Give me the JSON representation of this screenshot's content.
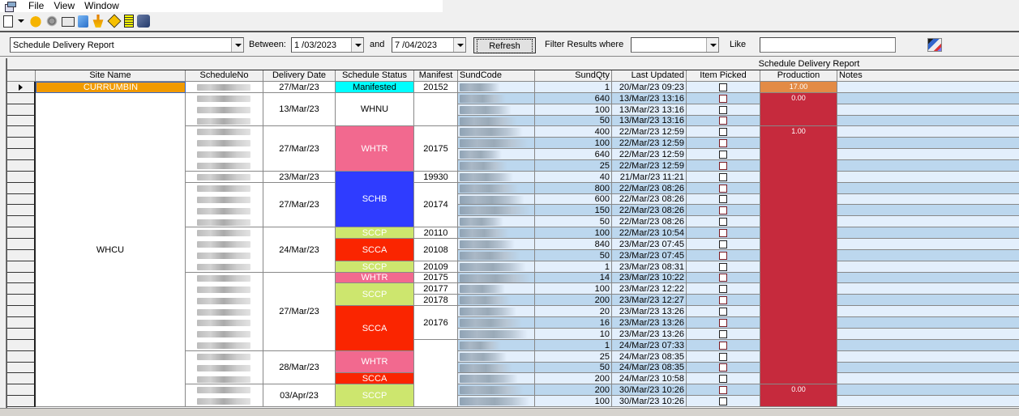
{
  "menubar": {
    "items": [
      "File",
      "View",
      "Window"
    ]
  },
  "toolbar": {
    "icons": [
      "new-document-icon",
      "dropdown-arrow-icon",
      "hand-icon",
      "ear-icon",
      "folder-network-icon",
      "copy-icon",
      "person-icon",
      "road-sign-icon",
      "ledger-icon",
      "box-icon"
    ]
  },
  "filterbar": {
    "report_select": "Schedule Delivery Report",
    "between_label": "Between:",
    "date_from": "1 /03/2023",
    "and_label": "and",
    "date_to": "7 /04/2023",
    "refresh_label": "Refresh",
    "filter_label": "Filter Results where",
    "filter_field": "",
    "like_label": "Like",
    "like_value": ""
  },
  "grid": {
    "band_title": "Schedule Delivery Report",
    "columns": [
      "Site Name",
      "ScheduleNo",
      "Delivery Date",
      "Schedule Status",
      "Manifest",
      "SundCode",
      "SundQty",
      "Last Updated",
      "Item Picked",
      "Production",
      "Notes"
    ],
    "site_groups": [
      {
        "name": "CURRUMBIN",
        "rows": 1,
        "color": "#f09a00"
      },
      {
        "name": "WHCU",
        "rows": 28,
        "color": "#ffffff"
      }
    ],
    "date_groups": [
      {
        "date": "27/Mar/23",
        "start": 0,
        "rows": 1
      },
      {
        "date": "13/Mar/23",
        "start": 1,
        "rows": 3
      },
      {
        "date": "27/Mar/23",
        "start": 4,
        "rows": 4
      },
      {
        "date": "23/Mar/23",
        "start": 8,
        "rows": 1
      },
      {
        "date": "27/Mar/23",
        "start": 9,
        "rows": 4
      },
      {
        "date": "24/Mar/23",
        "start": 13,
        "rows": 4
      },
      {
        "date": "27/Mar/23",
        "start": 17,
        "rows": 7
      },
      {
        "date": "28/Mar/23",
        "start": 24,
        "rows": 3
      },
      {
        "date": "03/Apr/23",
        "start": 27,
        "rows": 2
      }
    ],
    "status_groups": [
      {
        "status": "Manifested",
        "start": 0,
        "rows": 1,
        "bg": "#00ffff",
        "fg": "#000000"
      },
      {
        "status": "WHNU",
        "start": 1,
        "rows": 3,
        "bg": "#ffffff",
        "fg": "#000000"
      },
      {
        "status": "WHTR",
        "start": 4,
        "rows": 4,
        "bg": "#f2698f",
        "fg": "#ffffff"
      },
      {
        "status": "SCHB",
        "start": 8,
        "rows": 5,
        "bg": "#2f3cff",
        "fg": "#ffffff"
      },
      {
        "status": "SCCP",
        "start": 13,
        "rows": 1,
        "bg": "#cde66e",
        "fg": "#ffffff"
      },
      {
        "status": "SCCA",
        "start": 14,
        "rows": 2,
        "bg": "#fa2500",
        "fg": "#ffffff"
      },
      {
        "status": "SCCP",
        "start": 16,
        "rows": 1,
        "bg": "#cde66e",
        "fg": "#ffffff"
      },
      {
        "status": "WHTR",
        "start": 17,
        "rows": 1,
        "bg": "#f2698f",
        "fg": "#ffffff"
      },
      {
        "status": "SCCP",
        "start": 18,
        "rows": 2,
        "bg": "#cde66e",
        "fg": "#ffffff"
      },
      {
        "status": "SCCA",
        "start": 20,
        "rows": 4,
        "bg": "#fa2500",
        "fg": "#ffffff"
      },
      {
        "status": "WHTR",
        "start": 24,
        "rows": 2,
        "bg": "#f2698f",
        "fg": "#ffffff"
      },
      {
        "status": "SCCA",
        "start": 26,
        "rows": 1,
        "bg": "#fa2500",
        "fg": "#ffffff"
      },
      {
        "status": "SCCP",
        "start": 27,
        "rows": 2,
        "bg": "#cde66e",
        "fg": "#ffffff"
      }
    ],
    "manifest_groups": [
      {
        "manifest": "20152",
        "start": 0,
        "rows": 1
      },
      {
        "manifest": "",
        "start": 1,
        "rows": 3
      },
      {
        "manifest": "20175",
        "start": 4,
        "rows": 4
      },
      {
        "manifest": "19930",
        "start": 8,
        "rows": 1
      },
      {
        "manifest": "20174",
        "start": 9,
        "rows": 4
      },
      {
        "manifest": "20110",
        "start": 13,
        "rows": 1
      },
      {
        "manifest": "20108",
        "start": 14,
        "rows": 2
      },
      {
        "manifest": "20109",
        "start": 16,
        "rows": 1
      },
      {
        "manifest": "20175",
        "start": 17,
        "rows": 1
      },
      {
        "manifest": "20177",
        "start": 18,
        "rows": 1
      },
      {
        "manifest": "20178",
        "start": 19,
        "rows": 1
      },
      {
        "manifest": "20176",
        "start": 20,
        "rows": 3
      },
      {
        "manifest": "",
        "start": 23,
        "rows": 6
      }
    ],
    "production_groups": [
      {
        "value": "17.00",
        "start": 0,
        "rows": 1,
        "bg": "#e38b45"
      },
      {
        "value": "0.00",
        "start": 1,
        "rows": 3,
        "bg": "#c62a3d"
      },
      {
        "value": "1.00",
        "start": 4,
        "rows": 23,
        "bg": "#c62a3d"
      },
      {
        "value": "0.00",
        "start": 27,
        "rows": 2,
        "bg": "#c62a3d"
      }
    ],
    "rows": [
      {
        "qty": "1",
        "updated": "20/Mar/23 09:23"
      },
      {
        "qty": "640",
        "updated": "13/Mar/23 13:16"
      },
      {
        "qty": "100",
        "updated": "13/Mar/23 13:16"
      },
      {
        "qty": "50",
        "updated": "13/Mar/23 13:16"
      },
      {
        "qty": "400",
        "updated": "22/Mar/23 12:59"
      },
      {
        "qty": "100",
        "updated": "22/Mar/23 12:59"
      },
      {
        "qty": "640",
        "updated": "22/Mar/23 12:59"
      },
      {
        "qty": "25",
        "updated": "22/Mar/23 12:59"
      },
      {
        "qty": "40",
        "updated": "21/Mar/23 11:21"
      },
      {
        "qty": "800",
        "updated": "22/Mar/23 08:26"
      },
      {
        "qty": "600",
        "updated": "22/Mar/23 08:26"
      },
      {
        "qty": "150",
        "updated": "22/Mar/23 08:26"
      },
      {
        "qty": "50",
        "updated": "22/Mar/23 08:26"
      },
      {
        "qty": "100",
        "updated": "22/Mar/23 10:54"
      },
      {
        "qty": "840",
        "updated": "23/Mar/23 07:45"
      },
      {
        "qty": "50",
        "updated": "23/Mar/23 07:45"
      },
      {
        "qty": "1",
        "updated": "23/Mar/23 08:31"
      },
      {
        "qty": "14",
        "updated": "23/Mar/23 10:22"
      },
      {
        "qty": "100",
        "updated": "23/Mar/23 12:22"
      },
      {
        "qty": "200",
        "updated": "23/Mar/23 12:27"
      },
      {
        "qty": "20",
        "updated": "23/Mar/23 13:26"
      },
      {
        "qty": "16",
        "updated": "23/Mar/23 13:26"
      },
      {
        "qty": "10",
        "updated": "23/Mar/23 13:26"
      },
      {
        "qty": "1",
        "updated": "24/Mar/23 07:33"
      },
      {
        "qty": "25",
        "updated": "24/Mar/23 08:35"
      },
      {
        "qty": "50",
        "updated": "24/Mar/23 08:35"
      },
      {
        "qty": "200",
        "updated": "24/Mar/23 10:58"
      },
      {
        "qty": "200",
        "updated": "30/Mar/23 10:26"
      },
      {
        "qty": "100",
        "updated": "30/Mar/23 10:26"
      }
    ],
    "colors": {
      "row_light": "#e3effc",
      "row_dark": "#bcd7ee",
      "selected_site": "#f09a00"
    }
  }
}
